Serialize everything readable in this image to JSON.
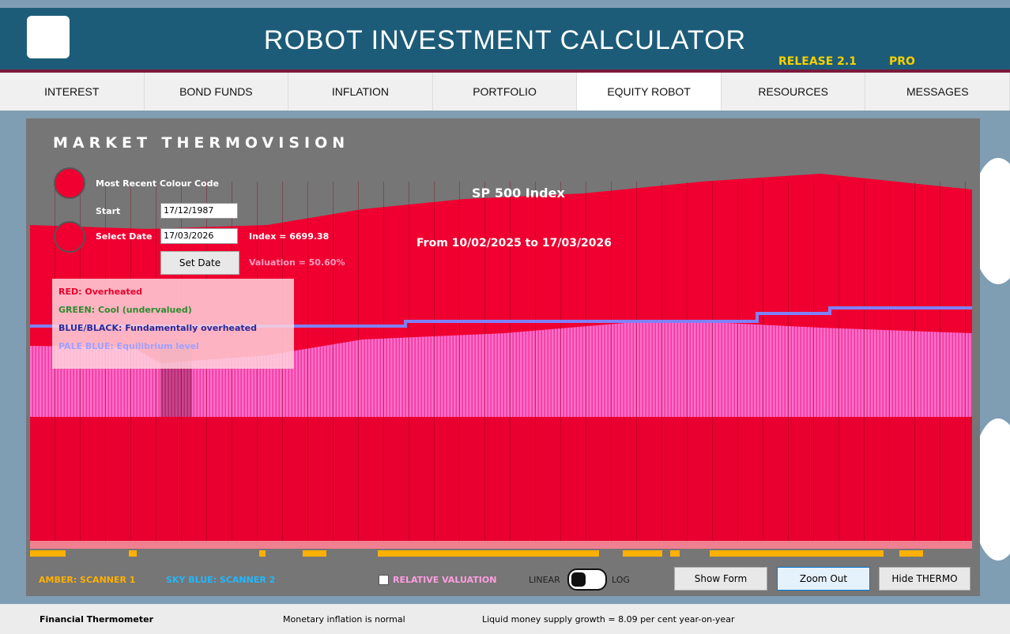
{
  "header": {
    "title": "ROBOT INVESTMENT CALCULATOR",
    "release": "RELEASE 2.1",
    "edition": "PRO"
  },
  "tabs": [
    "INTEREST",
    "BOND FUNDS",
    "INFLATION",
    "PORTFOLIO",
    "EQUITY ROBOT",
    "RESOURCES",
    "MESSAGES"
  ],
  "panel": {
    "title": "MARKET THERMOVISION",
    "recent_label": "Most Recent Colour Code",
    "start_label": "Start",
    "start_value": "17/12/1987",
    "select_label": "Select Date",
    "select_value": "17/03/2026",
    "index_text": "Index = 6699.38",
    "set_date": "Set Date",
    "valuation_text": "Valuation = 50.60%"
  },
  "legend": [
    "RED: Overheated",
    "GREEN: Cool (undervalued)",
    "BLUE/BLACK: Fundamentally overheated",
    "PALE BLUE: Equilibrium level"
  ],
  "chart": {
    "title": "SP 500 Index",
    "subtitle": "From 10/02/2025 to 17/03/2026"
  },
  "footer": {
    "scanner1": "AMBER: SCANNER 1",
    "scanner2": "SKY BLUE: SCANNER 2",
    "relative": "RELATIVE VALUATION",
    "linear": "LINEAR",
    "log": "LOG",
    "buttons": [
      "Show Form",
      "Zoom Out",
      "Hide THERMO"
    ]
  },
  "status": [
    "Financial Thermometer",
    "Monetary inflation is normal",
    "Liquid money supply growth = 8.09 per cent year-on-year"
  ]
}
